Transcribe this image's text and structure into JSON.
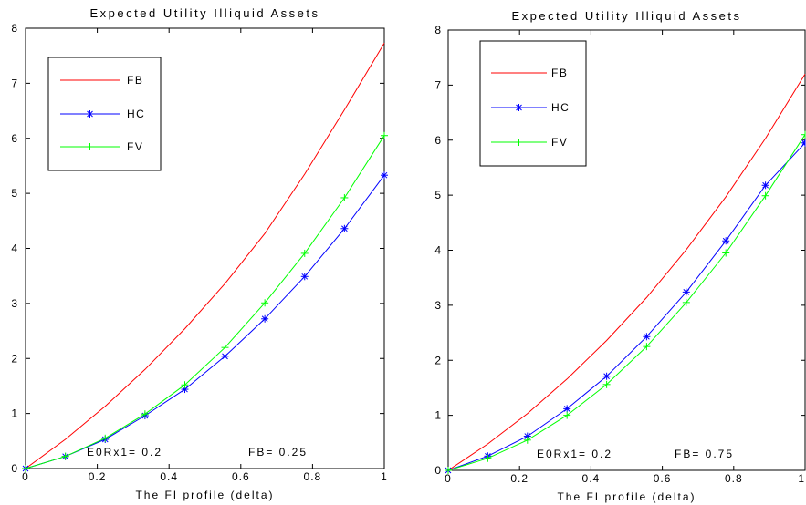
{
  "chart_data": [
    {
      "type": "line",
      "title": "Expected Utility Illiquid Assets",
      "xlabel": "The FI profile (delta)",
      "xlim": [
        0,
        1
      ],
      "ylim": [
        0,
        8
      ],
      "grid": false,
      "legend": "top-left",
      "xticks": [
        0,
        0.2,
        0.4,
        0.6,
        0.8,
        1
      ],
      "xtick_labels": [
        "0",
        "0.2",
        "0.4",
        "0.6",
        "0.8",
        "1"
      ],
      "yticks": [
        0,
        1,
        2,
        3,
        4,
        5,
        6,
        7,
        8
      ],
      "ytick_labels": [
        "0",
        "1",
        "2",
        "3",
        "4",
        "5",
        "6",
        "7",
        "8"
      ],
      "x": [
        0,
        0.111,
        0.222,
        0.333,
        0.444,
        0.556,
        0.667,
        0.778,
        0.889,
        1
      ],
      "series": [
        {
          "name": "FB",
          "color": "#ff0000",
          "marker": "none",
          "values": [
            0,
            0.53,
            1.13,
            1.8,
            2.54,
            3.36,
            4.27,
            5.35,
            6.52,
            7.73
          ]
        },
        {
          "name": "HC",
          "color": "#0000ff",
          "marker": "asterisk",
          "values": [
            0,
            0.22,
            0.53,
            0.96,
            1.44,
            2.04,
            2.72,
            3.49,
            4.36,
            5.33
          ]
        },
        {
          "name": "FV",
          "color": "#00ff00",
          "marker": "plus",
          "values": [
            0,
            0.22,
            0.55,
            0.99,
            1.52,
            2.2,
            3.01,
            3.91,
            4.92,
            6.05
          ]
        }
      ],
      "annotations": [
        "E0Rx1= 0.2",
        "FB= 0.25"
      ]
    },
    {
      "type": "line",
      "title": "Expected Utility Illiquid Assets",
      "xlabel": "The FI profile (delta)",
      "xlim": [
        0,
        1
      ],
      "ylim": [
        0,
        8
      ],
      "grid": false,
      "legend": "top-left",
      "xticks": [
        0,
        0.2,
        0.4,
        0.6,
        0.8,
        1
      ],
      "xtick_labels": [
        "0",
        "0.2",
        "0.4",
        "0.6",
        "0.8",
        "1"
      ],
      "yticks": [
        0,
        1,
        2,
        3,
        4,
        5,
        6,
        7,
        8
      ],
      "ytick_labels": [
        "0",
        "1",
        "2",
        "3",
        "4",
        "5",
        "6",
        "7",
        "8"
      ],
      "x": [
        0,
        0.111,
        0.222,
        0.333,
        0.444,
        0.556,
        0.667,
        0.778,
        0.889,
        1
      ],
      "series": [
        {
          "name": "FB",
          "color": "#ff0000",
          "marker": "none",
          "values": [
            0,
            0.48,
            1.03,
            1.66,
            2.36,
            3.14,
            4.01,
            4.97,
            6.03,
            7.2
          ]
        },
        {
          "name": "HC",
          "color": "#0000ff",
          "marker": "asterisk",
          "values": [
            0,
            0.26,
            0.62,
            1.12,
            1.71,
            2.43,
            3.24,
            4.17,
            5.18,
            5.95
          ]
        },
        {
          "name": "FV",
          "color": "#00ff00",
          "marker": "plus",
          "values": [
            0,
            0.22,
            0.55,
            1.0,
            1.56,
            2.25,
            3.05,
            3.95,
            4.99,
            6.1
          ]
        }
      ],
      "annotations": [
        "E0Rx1= 0.2",
        "FB= 0.75"
      ]
    }
  ]
}
